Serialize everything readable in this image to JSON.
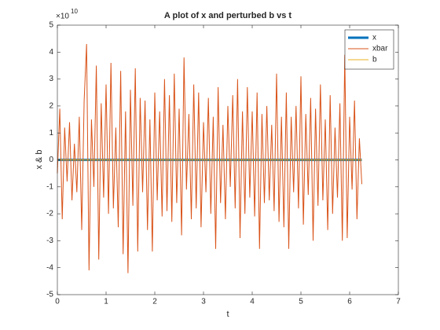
{
  "chart_data": {
    "type": "line",
    "title": "A plot of x and perturbed b vs t",
    "x_label": "t",
    "y_label": "x & b",
    "y_multiplier": {
      "base": "×10",
      "exponent": "10"
    },
    "xlim": [
      0,
      7
    ],
    "xticks": [
      0,
      1,
      2,
      3,
      4,
      5,
      6,
      7
    ],
    "ylim": [
      -5,
      5
    ],
    "yticks": [
      -5,
      -4,
      -3,
      -2,
      -1,
      0,
      1,
      2,
      3,
      4,
      5
    ],
    "legend": "top-right",
    "grid": false,
    "x": [
      0,
      0.05,
      0.1,
      0.15,
      0.2,
      0.25,
      0.3,
      0.35,
      0.4,
      0.45,
      0.5,
      0.55,
      0.6,
      0.65,
      0.7,
      0.75,
      0.8,
      0.85,
      0.9,
      0.95,
      1,
      1.05,
      1.1,
      1.15,
      1.2,
      1.25,
      1.3,
      1.35,
      1.4,
      1.45,
      1.5,
      1.55,
      1.6,
      1.65,
      1.7,
      1.75,
      1.8,
      1.85,
      1.9,
      1.95,
      2,
      2.05,
      2.1,
      2.15,
      2.2,
      2.25,
      2.3,
      2.35,
      2.4,
      2.45,
      2.5,
      2.55,
      2.6,
      2.65,
      2.7,
      2.75,
      2.8,
      2.85,
      2.9,
      2.95,
      3,
      3.05,
      3.1,
      3.15,
      3.2,
      3.25,
      3.3,
      3.35,
      3.4,
      3.45,
      3.5,
      3.55,
      3.6,
      3.65,
      3.7,
      3.75,
      3.8,
      3.85,
      3.9,
      3.95,
      4,
      4.05,
      4.1,
      4.15,
      4.2,
      4.25,
      4.3,
      4.35,
      4.4,
      4.45,
      4.5,
      4.55,
      4.6,
      4.65,
      4.7,
      4.75,
      4.8,
      4.85,
      4.9,
      4.95,
      5,
      5.05,
      5.1,
      5.15,
      5.2,
      5.25,
      5.3,
      5.35,
      5.4,
      5.45,
      5.5,
      5.55,
      5.6,
      5.65,
      5.7,
      5.75,
      5.8,
      5.85,
      5.9,
      5.95,
      6,
      6.05,
      6.1,
      6.15,
      6.2,
      6.25
    ],
    "series": [
      {
        "name": "x",
        "color": "#0072bd",
        "width": 3,
        "values": [
          0,
          0,
          0,
          0,
          0,
          0,
          0,
          0,
          0,
          0,
          0,
          0,
          0,
          0,
          0,
          0,
          0,
          0,
          0,
          0,
          0,
          0,
          0,
          0,
          0,
          0,
          0,
          0,
          0,
          0,
          0,
          0,
          0,
          0,
          0,
          0,
          0,
          0,
          0,
          0,
          0,
          0,
          0,
          0,
          0,
          0,
          0,
          0,
          0,
          0,
          0,
          0,
          0,
          0,
          0,
          0,
          0,
          0,
          0,
          0,
          0,
          0,
          0,
          0,
          0,
          0,
          0,
          0,
          0,
          0,
          0,
          0,
          0,
          0,
          0,
          0,
          0,
          0,
          0,
          0,
          0,
          0,
          0,
          0,
          0,
          0,
          0,
          0,
          0,
          0,
          0,
          0,
          0,
          0,
          0,
          0,
          0,
          0,
          0,
          0,
          0,
          0,
          0,
          0,
          0,
          0,
          0,
          0,
          0,
          0,
          0,
          0,
          0,
          0,
          0,
          0,
          0,
          0,
          0,
          0,
          0,
          0,
          0,
          0,
          0,
          0
        ]
      },
      {
        "name": "xbar",
        "color": "#d95319",
        "width": 1,
        "values": [
          -0.5,
          1.9,
          -2.2,
          1.2,
          -0.8,
          1.4,
          -1.5,
          0.6,
          -1.2,
          1.6,
          -2.6,
          2.2,
          4.3,
          -4.1,
          1.5,
          -1.0,
          3.5,
          -3.7,
          2.1,
          -1.4,
          2.8,
          -2.0,
          3.6,
          -1.8,
          1.2,
          -2.5,
          3.3,
          -3.5,
          1.8,
          -4.2,
          2.6,
          -1.7,
          3.4,
          -3.4,
          2.3,
          -1.2,
          2.2,
          -2.6,
          1.5,
          -3.4,
          2.5,
          -1.5,
          1.8,
          -2.1,
          3.0,
          -1.9,
          2.4,
          -2.3,
          3.2,
          -1.6,
          1.9,
          -2.8,
          3.8,
          -1.1,
          1.7,
          -2.2,
          2.8,
          -1.8,
          2.5,
          -2.5,
          1.4,
          -1.2,
          2.3,
          -2.0,
          1.6,
          -3.3,
          2.7,
          -1.6,
          1.3,
          -2.2,
          2.0,
          -1.0,
          2.4,
          -1.8,
          3.0,
          -2.9,
          1.8,
          -2.0,
          2.7,
          -1.4,
          1.8,
          -2.1,
          2.5,
          -3.3,
          1.7,
          -1.6,
          2.0,
          -1.5,
          1.3,
          -1.9,
          3.2,
          -2.3,
          1.6,
          -2.5,
          2.5,
          -3.3,
          1.6,
          -1.2,
          2.0,
          -1.8,
          3.1,
          -2.4,
          1.7,
          -1.3,
          2.3,
          -3.0,
          1.9,
          -1.7,
          2.8,
          -1.5,
          1.5,
          -2.6,
          2.4,
          -2.0,
          1.2,
          -1.4,
          2.1,
          -3.0,
          3.9,
          -2.9,
          1.6,
          -1.1,
          2.2,
          -2.2,
          0.8,
          -0.9
        ]
      },
      {
        "name": "b",
        "color": "#edb120",
        "width": 1,
        "values": [
          0,
          0,
          0,
          0,
          0,
          0,
          0,
          0,
          0,
          0,
          0,
          0,
          0,
          0,
          0,
          0,
          0,
          0,
          0,
          0,
          0,
          0,
          0,
          0,
          0,
          0,
          0,
          0,
          0,
          0,
          0,
          0,
          0,
          0,
          0,
          0,
          0,
          0,
          0,
          0,
          0,
          0,
          0,
          0,
          0,
          0,
          0,
          0,
          0,
          0,
          0,
          0,
          0,
          0,
          0,
          0,
          0,
          0,
          0,
          0,
          0,
          0,
          0,
          0,
          0,
          0,
          0,
          0,
          0,
          0,
          0,
          0,
          0,
          0,
          0,
          0,
          0,
          0,
          0,
          0,
          0,
          0,
          0,
          0,
          0,
          0,
          0,
          0,
          0,
          0,
          0,
          0,
          0,
          0,
          0,
          0,
          0,
          0,
          0,
          0,
          0,
          0,
          0,
          0,
          0,
          0,
          0,
          0,
          0,
          0,
          0,
          0,
          0,
          0,
          0,
          0,
          0,
          0,
          0,
          0,
          0,
          0,
          0,
          0,
          0,
          0
        ]
      }
    ]
  }
}
